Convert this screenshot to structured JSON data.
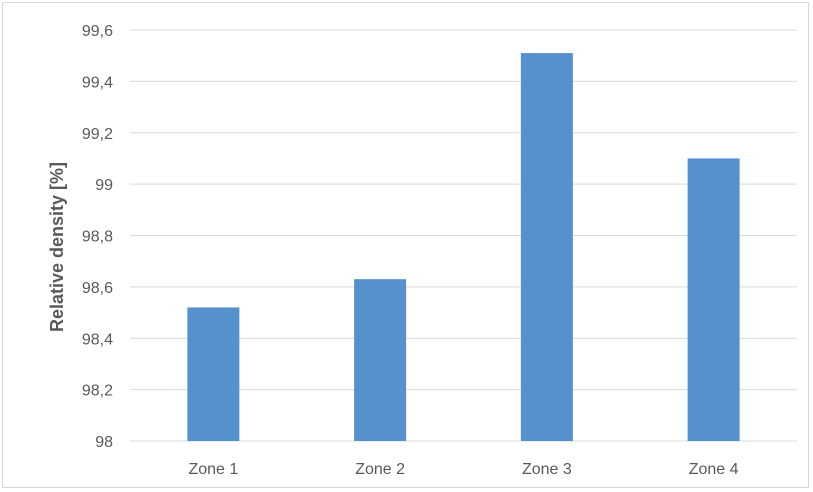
{
  "chart_data": {
    "type": "bar",
    "categories": [
      "Zone 1",
      "Zone 2",
      "Zone 3",
      "Zone 4"
    ],
    "values": [
      98.52,
      98.63,
      99.51,
      99.1
    ],
    "title": "",
    "xlabel": "",
    "ylabel": "Relative density [%]",
    "ylim": [
      98,
      99.6
    ],
    "yticks": [
      98,
      98.2,
      98.4,
      98.6,
      98.8,
      99,
      99.2,
      99.4,
      99.6
    ],
    "ytick_labels": [
      "98",
      "98,2",
      "98,4",
      "98,6",
      "98,8",
      "99",
      "99,2",
      "99,4",
      "99,6"
    ],
    "grid": true,
    "legend": "none",
    "colors": {
      "bar": "#5591cd",
      "grid": "#d9d9d9",
      "text": "#595959"
    }
  }
}
